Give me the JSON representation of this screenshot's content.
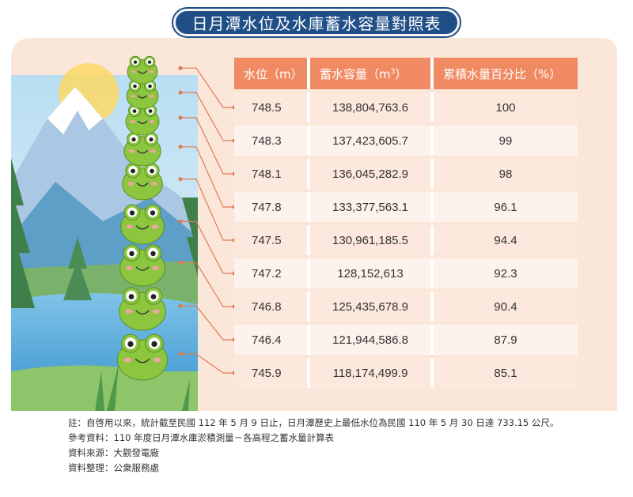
{
  "title": "日月潭水位及水庫蓄水容量對照表",
  "chart_data": {
    "type": "table",
    "title": "日月潭水位及水庫蓄水容量對照表",
    "columns": [
      "水位（m）",
      "蓄水容量（m³）",
      "累積水量百分比（%）"
    ],
    "rows": [
      {
        "level": "748.5",
        "capacity": "138,804,763.6",
        "percent": "100"
      },
      {
        "level": "748.3",
        "capacity": "137,423,605.7",
        "percent": "99"
      },
      {
        "level": "748.1",
        "capacity": "136,045,282.9",
        "percent": "98"
      },
      {
        "level": "747.8",
        "capacity": "133,377,563.1",
        "percent": "96.1"
      },
      {
        "level": "747.5",
        "capacity": "130,961,185.5",
        "percent": "94.4"
      },
      {
        "level": "747.2",
        "capacity": "128,152,613",
        "percent": "92.3"
      },
      {
        "level": "746.8",
        "capacity": "125,435,678.9",
        "percent": "90.4"
      },
      {
        "level": "746.4",
        "capacity": "121,944,586.8",
        "percent": "87.9"
      },
      {
        "level": "745.9",
        "capacity": "118,174,499.9",
        "percent": "85.1"
      }
    ]
  },
  "header": {
    "col0_text": "水位（m）",
    "col1_text": "蓄水容量（m",
    "col1_sup": "3",
    "col1_close": "）",
    "col2_text": "累積水量百分比（%）"
  },
  "notes": [
    "註：自啓用以來，統計截至民國 112 年 5 月 9 日止，日月潭歷史上最低水位為民國 110 年 5 月 30 日達 733.15 公尺。",
    "參考資料：110 年度日月潭水庫淤積測量－各高程之蓄水量計算表",
    "資料來源：大觀發電廠",
    "資料整理：公衆服務處"
  ],
  "colors": {
    "header": "#f08a62",
    "row_a": "#fef3ec",
    "row_b": "#fde8dd",
    "backdrop": "#fbe7d9",
    "title_bg": "#1f4f86",
    "frog": "#8cc63f"
  }
}
